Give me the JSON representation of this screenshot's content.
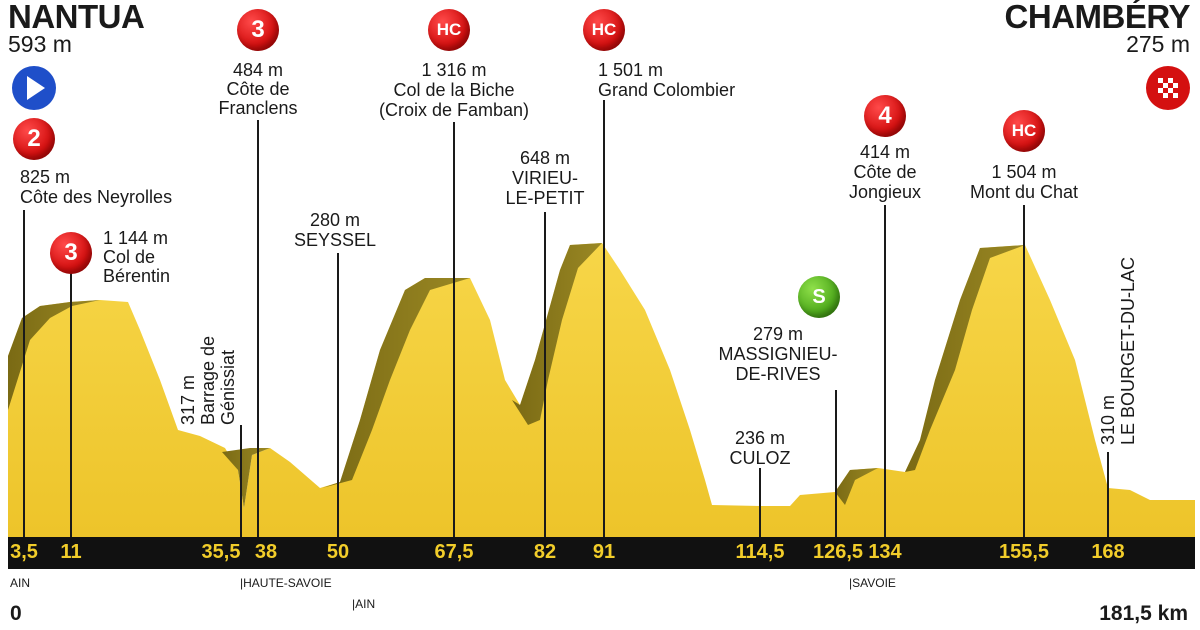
{
  "start": {
    "name": "NANTUA",
    "alt": "593 m"
  },
  "finish": {
    "name": "CHAMBÉRY",
    "alt": "275 m"
  },
  "climbs": [
    {
      "cat": "2",
      "alt": "825 m",
      "name": "Côte des Neyrolles"
    },
    {
      "cat": "3",
      "alt": "1 144 m",
      "name": "Col de Bérentin"
    },
    {
      "cat": "3",
      "alt": "484 m",
      "name": "Côte de Franclens"
    },
    {
      "cat": "HC",
      "alt": "1 316 m",
      "name": "Col de la Biche",
      "sub": "(Croix de Famban)"
    },
    {
      "cat": "HC",
      "alt": "1 501 m",
      "name": "Grand Colombier"
    },
    {
      "cat": "4",
      "alt": "414 m",
      "name": "Côte de Jongieux"
    },
    {
      "cat": "HC",
      "alt": "1 504 m",
      "name": "Mont du Chat"
    }
  ],
  "places": [
    {
      "alt": "317 m",
      "name1": "Barrage de",
      "name2": "Génissiat"
    },
    {
      "alt": "280 m",
      "name": "SEYSSEL"
    },
    {
      "alt": "648 m",
      "name1": "VIRIEU-",
      "name2": "LE-PETIT"
    },
    {
      "alt": "236 m",
      "name": "CULOZ"
    },
    {
      "alt": "310 m",
      "name": "LE BOURGET-DU-LAC"
    }
  ],
  "sprint": {
    "cat": "S",
    "alt": "279 m",
    "name1": "MASSIGNIEU-",
    "name2": "DE-RIVES"
  },
  "km_markers": [
    "3,5",
    "11",
    "35,5",
    "38",
    "50",
    "67,5",
    "82",
    "91",
    "114,5",
    "126,5",
    "134",
    "155,5",
    "168"
  ],
  "regions": {
    "ain1": "AIN",
    "haute_savoie": "|HAUTE-SAVOIE",
    "ain2": "|AIN",
    "savoie": "|SAVOIE"
  },
  "distance": {
    "start": "0",
    "end": "181,5 km"
  },
  "colors": {
    "terrain": "#f5d03c",
    "climb_face": "#8b7a1e",
    "axis_bar": "#111111",
    "km_text": "#f2cd2a",
    "category_badge": "#d41010",
    "sprint_badge": "#4faa1c",
    "start_badge": "#1f4fc9"
  }
}
